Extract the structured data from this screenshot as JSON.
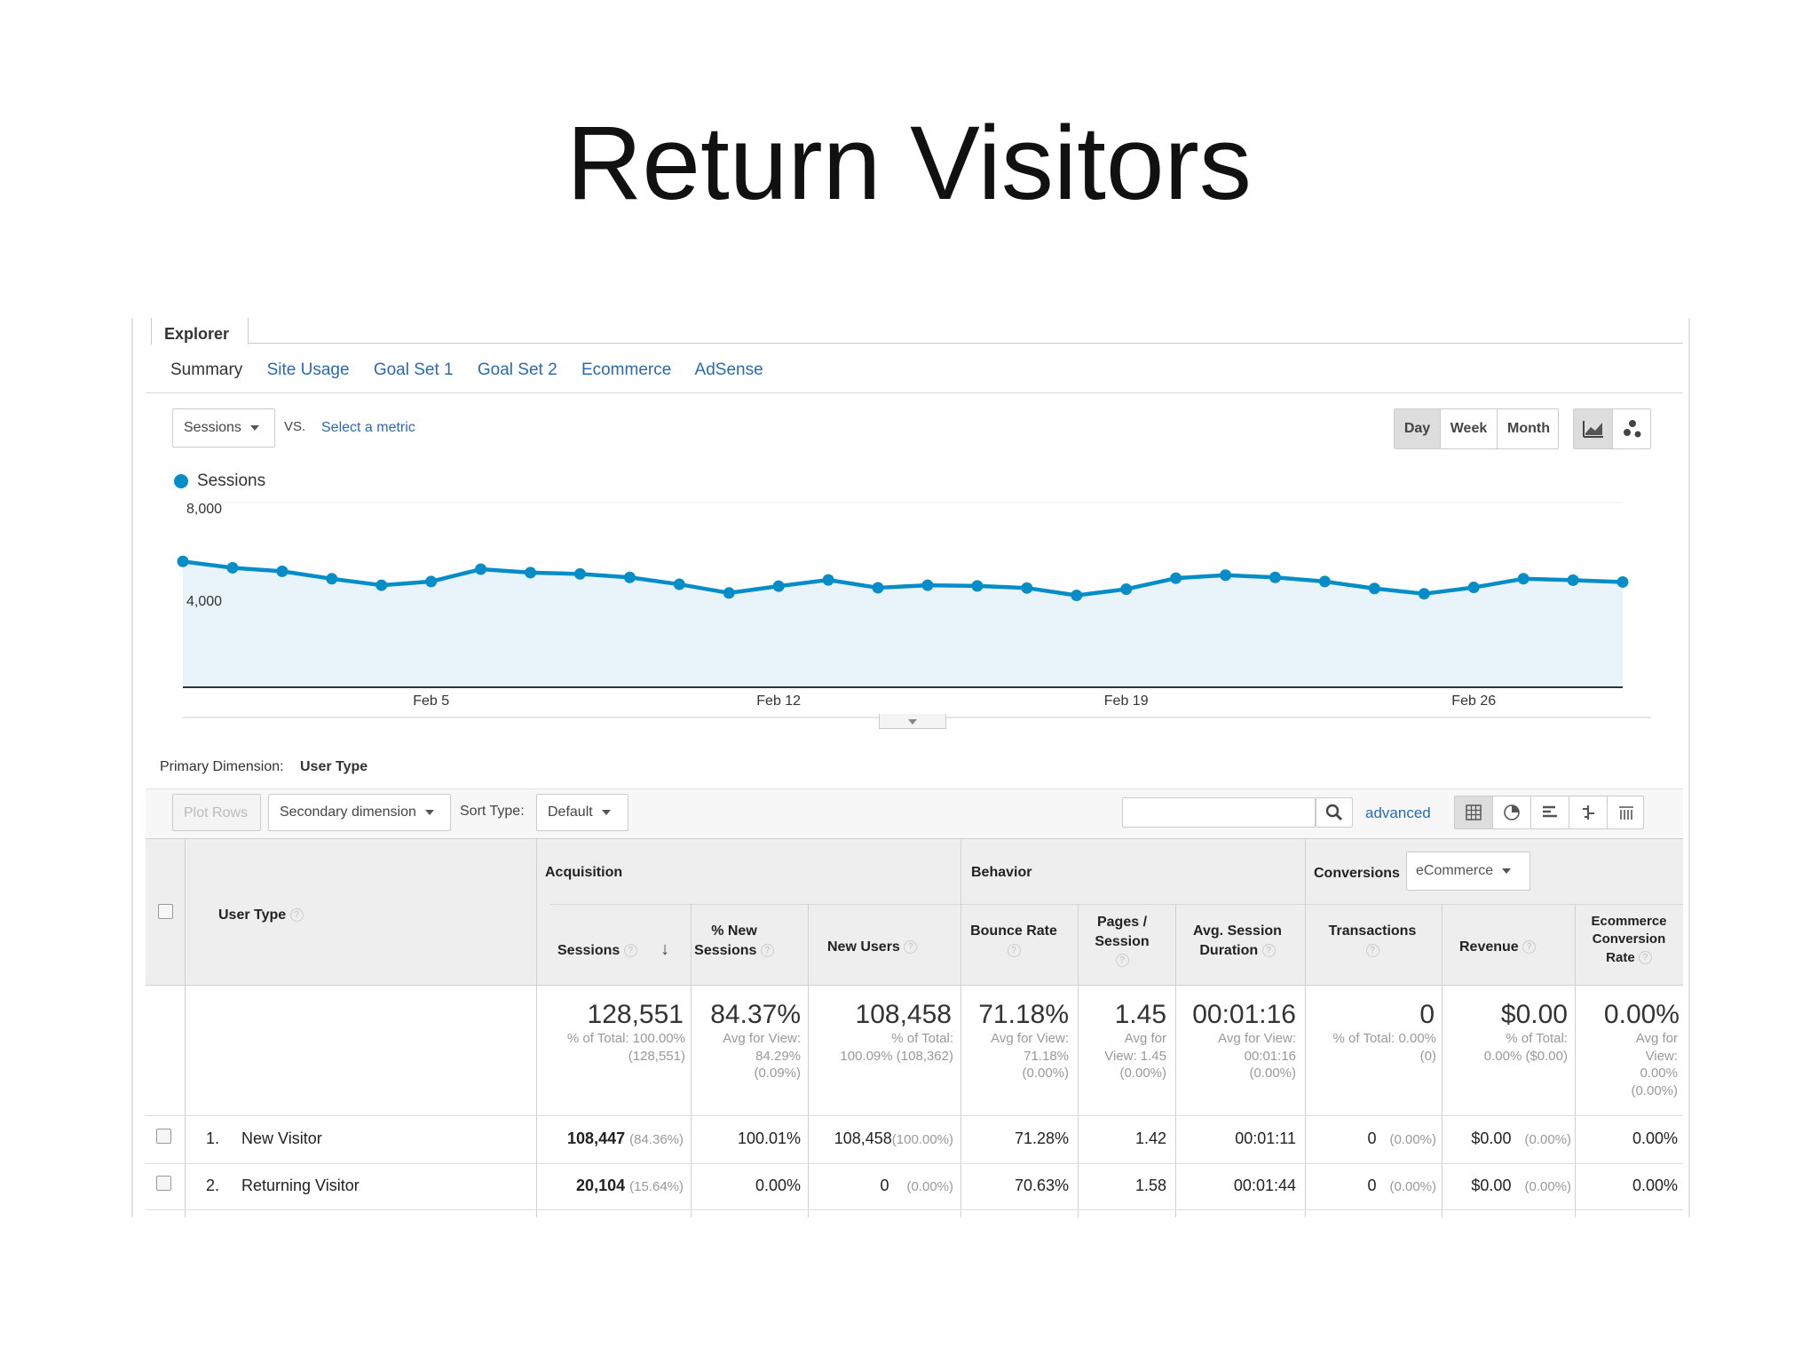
{
  "slide": {
    "title": "Return Visitors"
  },
  "explorer": {
    "tab": "Explorer",
    "subtabs": [
      "Summary",
      "Site Usage",
      "Goal Set 1",
      "Goal Set 2",
      "Ecommerce",
      "AdSense"
    ]
  },
  "controls": {
    "metric": "Sessions",
    "vs": "VS.",
    "select_metric": "Select a metric",
    "periods": [
      "Day",
      "Week",
      "Month"
    ],
    "active_period": "Day"
  },
  "chart_data": {
    "type": "area",
    "series": [
      {
        "name": "Sessions",
        "color": "#058dc7",
        "values": [
          5450,
          5175,
          5025,
          4700,
          4420,
          4580,
          5115,
          4965,
          4910,
          4760,
          4460,
          4085,
          4380,
          4650,
          4310,
          4420,
          4390,
          4300,
          3980,
          4250,
          4725,
          4855,
          4760,
          4580,
          4280,
          4050,
          4325,
          4700,
          4640,
          4560
        ]
      }
    ],
    "x_labels": [
      "Feb 5",
      "Feb 12",
      "Feb 19",
      "Feb 26"
    ],
    "x_label_indices": [
      5,
      12,
      19,
      26
    ],
    "y_ticks": [
      "8,000",
      "4,000"
    ],
    "ylim": [
      0,
      8000
    ],
    "grid": true,
    "legend": "top-left"
  },
  "dimension": {
    "label": "Primary Dimension:",
    "value": "User Type"
  },
  "toolbar": {
    "plot_rows": "Plot Rows",
    "secondary_dimension": "Secondary dimension",
    "sort_type_label": "Sort Type:",
    "sort_type": "Default",
    "search_placeholder": "",
    "advanced": "advanced"
  },
  "table": {
    "groups": {
      "acquisition": "Acquisition",
      "behavior": "Behavior",
      "conversions": "Conversions",
      "conversions_select": "eCommerce"
    },
    "headers": {
      "user_type": "User Type",
      "sessions": "Sessions",
      "new_sessions_1": "% New",
      "new_sessions_2": "Sessions",
      "new_users": "New Users",
      "bounce_rate": "Bounce Rate",
      "pages_1": "Pages /",
      "pages_2": "Session",
      "avg_dur_1": "Avg. Session",
      "avg_dur_2": "Duration",
      "transactions": "Transactions",
      "revenue": "Revenue",
      "ecr_1": "Ecommerce",
      "ecr_2": "Conversion",
      "ecr_3": "Rate"
    },
    "totals": {
      "sessions": "128,551",
      "sessions_sub": [
        "% of Total: 100.00%",
        "(128,551)"
      ],
      "new_sessions": "84.37%",
      "new_sessions_sub": [
        "Avg for View:",
        "84.29%",
        "(0.09%)"
      ],
      "new_users": "108,458",
      "new_users_sub": [
        "% of Total:",
        "100.09% (108,362)"
      ],
      "bounce_rate": "71.18%",
      "bounce_rate_sub": [
        "Avg for View:",
        "71.18%",
        "(0.00%)"
      ],
      "pages": "1.45",
      "pages_sub": [
        "Avg for",
        "View: 1.45",
        "(0.00%)"
      ],
      "avg_dur": "00:01:16",
      "avg_dur_sub": [
        "Avg for View:",
        "00:01:16",
        "(0.00%)"
      ],
      "transactions": "0",
      "transactions_sub": [
        "% of Total: 0.00%",
        "(0)"
      ],
      "revenue": "$0.00",
      "revenue_sub": [
        "% of Total:",
        "0.00% ($0.00)"
      ],
      "ecr": "0.00%",
      "ecr_sub": [
        "Avg for",
        "View:",
        "0.00%",
        "(0.00%)"
      ]
    },
    "rows": [
      {
        "index": "1.",
        "type": "New Visitor",
        "sessions": "108,447",
        "sessions_pct": "(84.36%)",
        "new_sessions": "100.01%",
        "new_users": "108,458",
        "new_users_pct": "(100.00%)",
        "bounce_rate": "71.28%",
        "pages": "1.42",
        "avg_dur": "00:01:11",
        "transactions": "0",
        "transactions_pct": "(0.00%)",
        "revenue": "$0.00",
        "revenue_pct": "(0.00%)",
        "ecr": "0.00%"
      },
      {
        "index": "2.",
        "type": "Returning Visitor",
        "sessions": "20,104",
        "sessions_pct": "(15.64%)",
        "new_sessions": "0.00%",
        "new_users": "0",
        "new_users_pct": "(0.00%)",
        "bounce_rate": "70.63%",
        "pages": "1.58",
        "avg_dur": "00:01:44",
        "transactions": "0",
        "transactions_pct": "(0.00%)",
        "revenue": "$0.00",
        "revenue_pct": "(0.00%)",
        "ecr": "0.00%"
      }
    ]
  },
  "colors": {
    "accent": "#058dc7",
    "link": "#2a6ab1",
    "header_bg": "#eeeeee"
  }
}
